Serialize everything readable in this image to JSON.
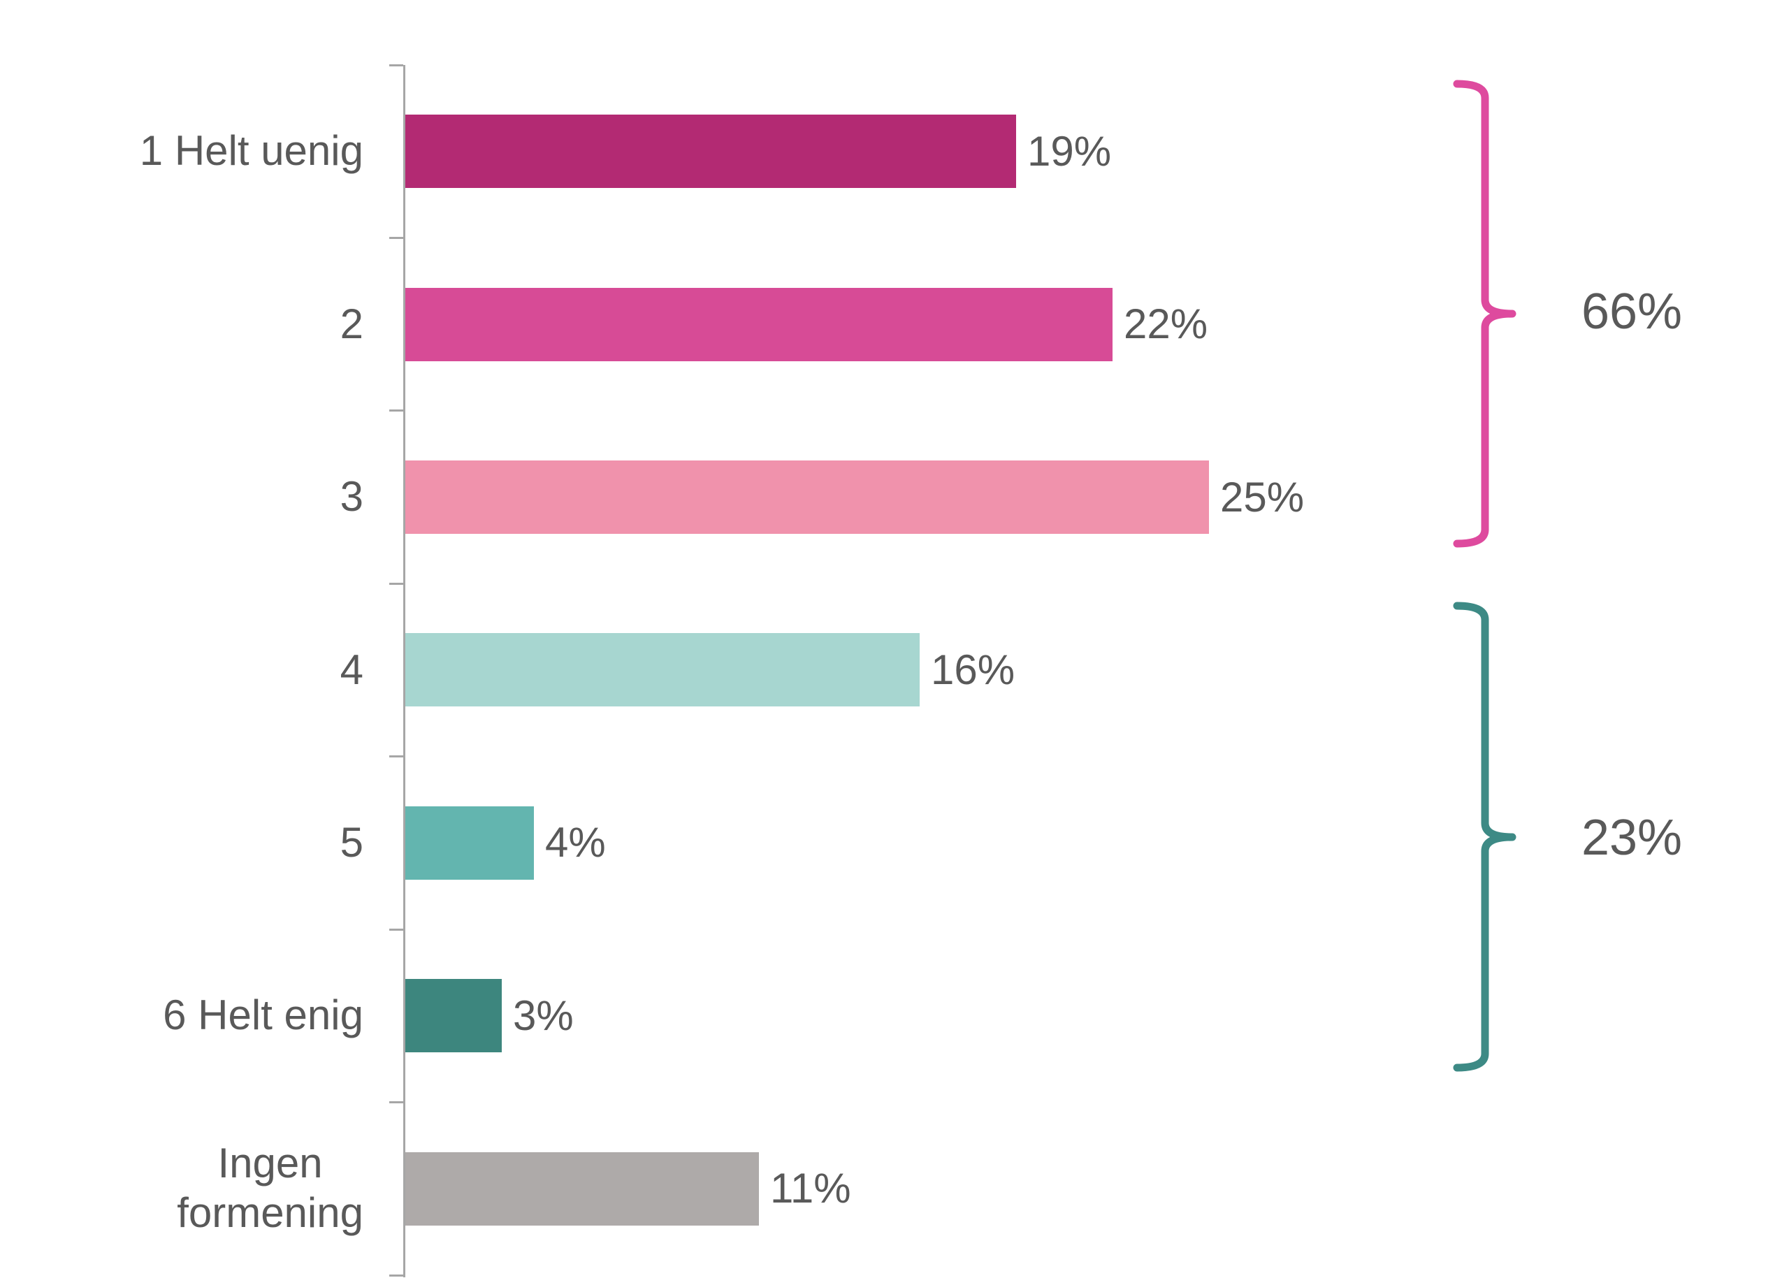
{
  "chart_data": {
    "type": "bar",
    "orientation": "horizontal",
    "title": "",
    "xlabel": "",
    "ylabel": "",
    "grid": false,
    "xlim": [
      0,
      30
    ],
    "categories": [
      "1 Helt uenig",
      "2",
      "3",
      "4",
      "5",
      "6 Helt enig",
      "Ingen\nformening"
    ],
    "values": [
      19,
      22,
      25,
      16,
      4,
      3,
      11
    ],
    "value_labels": [
      "19%",
      "22%",
      "25%",
      "16%",
      "4%",
      "3%",
      "11%"
    ],
    "bar_colors": [
      "#b32a73",
      "#d74b96",
      "#f092ac",
      "#a7d6d0",
      "#63b5af",
      "#3d867e",
      "#aeaaa9"
    ],
    "axis_color": "#a6a6a6",
    "label_color": "#595959",
    "legend": "none",
    "groups": [
      {
        "label": "66%",
        "span_categories": [
          "1 Helt uenig",
          "2",
          "3"
        ],
        "color": "#de4a9e"
      },
      {
        "label": "23%",
        "span_categories": [
          "4",
          "5",
          "6 Helt enig"
        ],
        "color": "#3d8a85"
      }
    ]
  }
}
